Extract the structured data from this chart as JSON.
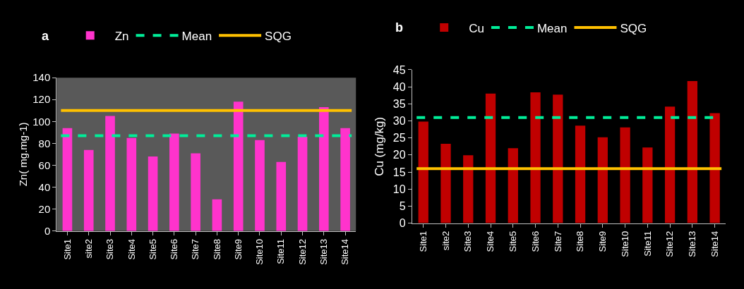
{
  "chart_data": [
    {
      "type": "bar",
      "title": "a",
      "ylabel": "Zn( mg.mg-1)",
      "categories": [
        "Site1",
        "site2",
        "Site3",
        "Site4",
        "Site5",
        "Site6",
        "Site7",
        "Site8",
        "Site9",
        "Site10",
        "Site11",
        "Site12",
        "Site13",
        "Site14"
      ],
      "series": [
        {
          "name": "Zn",
          "color": "#ff33cc",
          "values": [
            94,
            74,
            105,
            85,
            68,
            89,
            71,
            29,
            118,
            83,
            63,
            86,
            113,
            94
          ]
        }
      ],
      "ref_lines": [
        {
          "axis": "y",
          "value": 87,
          "label": "Mean",
          "color": "#00ee99",
          "line_style": "dashed"
        },
        {
          "axis": "y",
          "value": 110,
          "label": "SQG",
          "color": "#ffc000",
          "line_style": "solid"
        }
      ],
      "ylim": [
        0,
        140
      ],
      "yticks": [
        0,
        20,
        40,
        60,
        80,
        100,
        120,
        140
      ],
      "grid": false,
      "legend": "top left"
    },
    {
      "type": "bar",
      "title": "b",
      "ylabel": "Cu (mg/kg)",
      "categories": [
        "Site1",
        "site2",
        "Site3",
        "Site4",
        "Site5",
        "Site6",
        "Site7",
        "Site8",
        "Site9",
        "Site10",
        "Site11",
        "Site12",
        "Site13",
        "Site14"
      ],
      "series": [
        {
          "name": "Cu",
          "color": "#c00000",
          "values": [
            29.8,
            23.3,
            19.9,
            38,
            22,
            38.4,
            37.7,
            28.6,
            25.2,
            28.1,
            22.2,
            34.2,
            41.7,
            32.3
          ]
        }
      ],
      "ref_lines": [
        {
          "axis": "y",
          "value": 31,
          "label": "Mean",
          "color": "#00ee99",
          "line_style": "dashed"
        },
        {
          "axis": "y",
          "value": 16,
          "label": "SQG",
          "color": "#ffc000",
          "line_style": "solid"
        }
      ],
      "ylim": [
        0,
        45
      ],
      "yticks": [
        0,
        5,
        10,
        15,
        20,
        25,
        30,
        35,
        40,
        45
      ],
      "grid": false,
      "legend": "top left"
    }
  ]
}
